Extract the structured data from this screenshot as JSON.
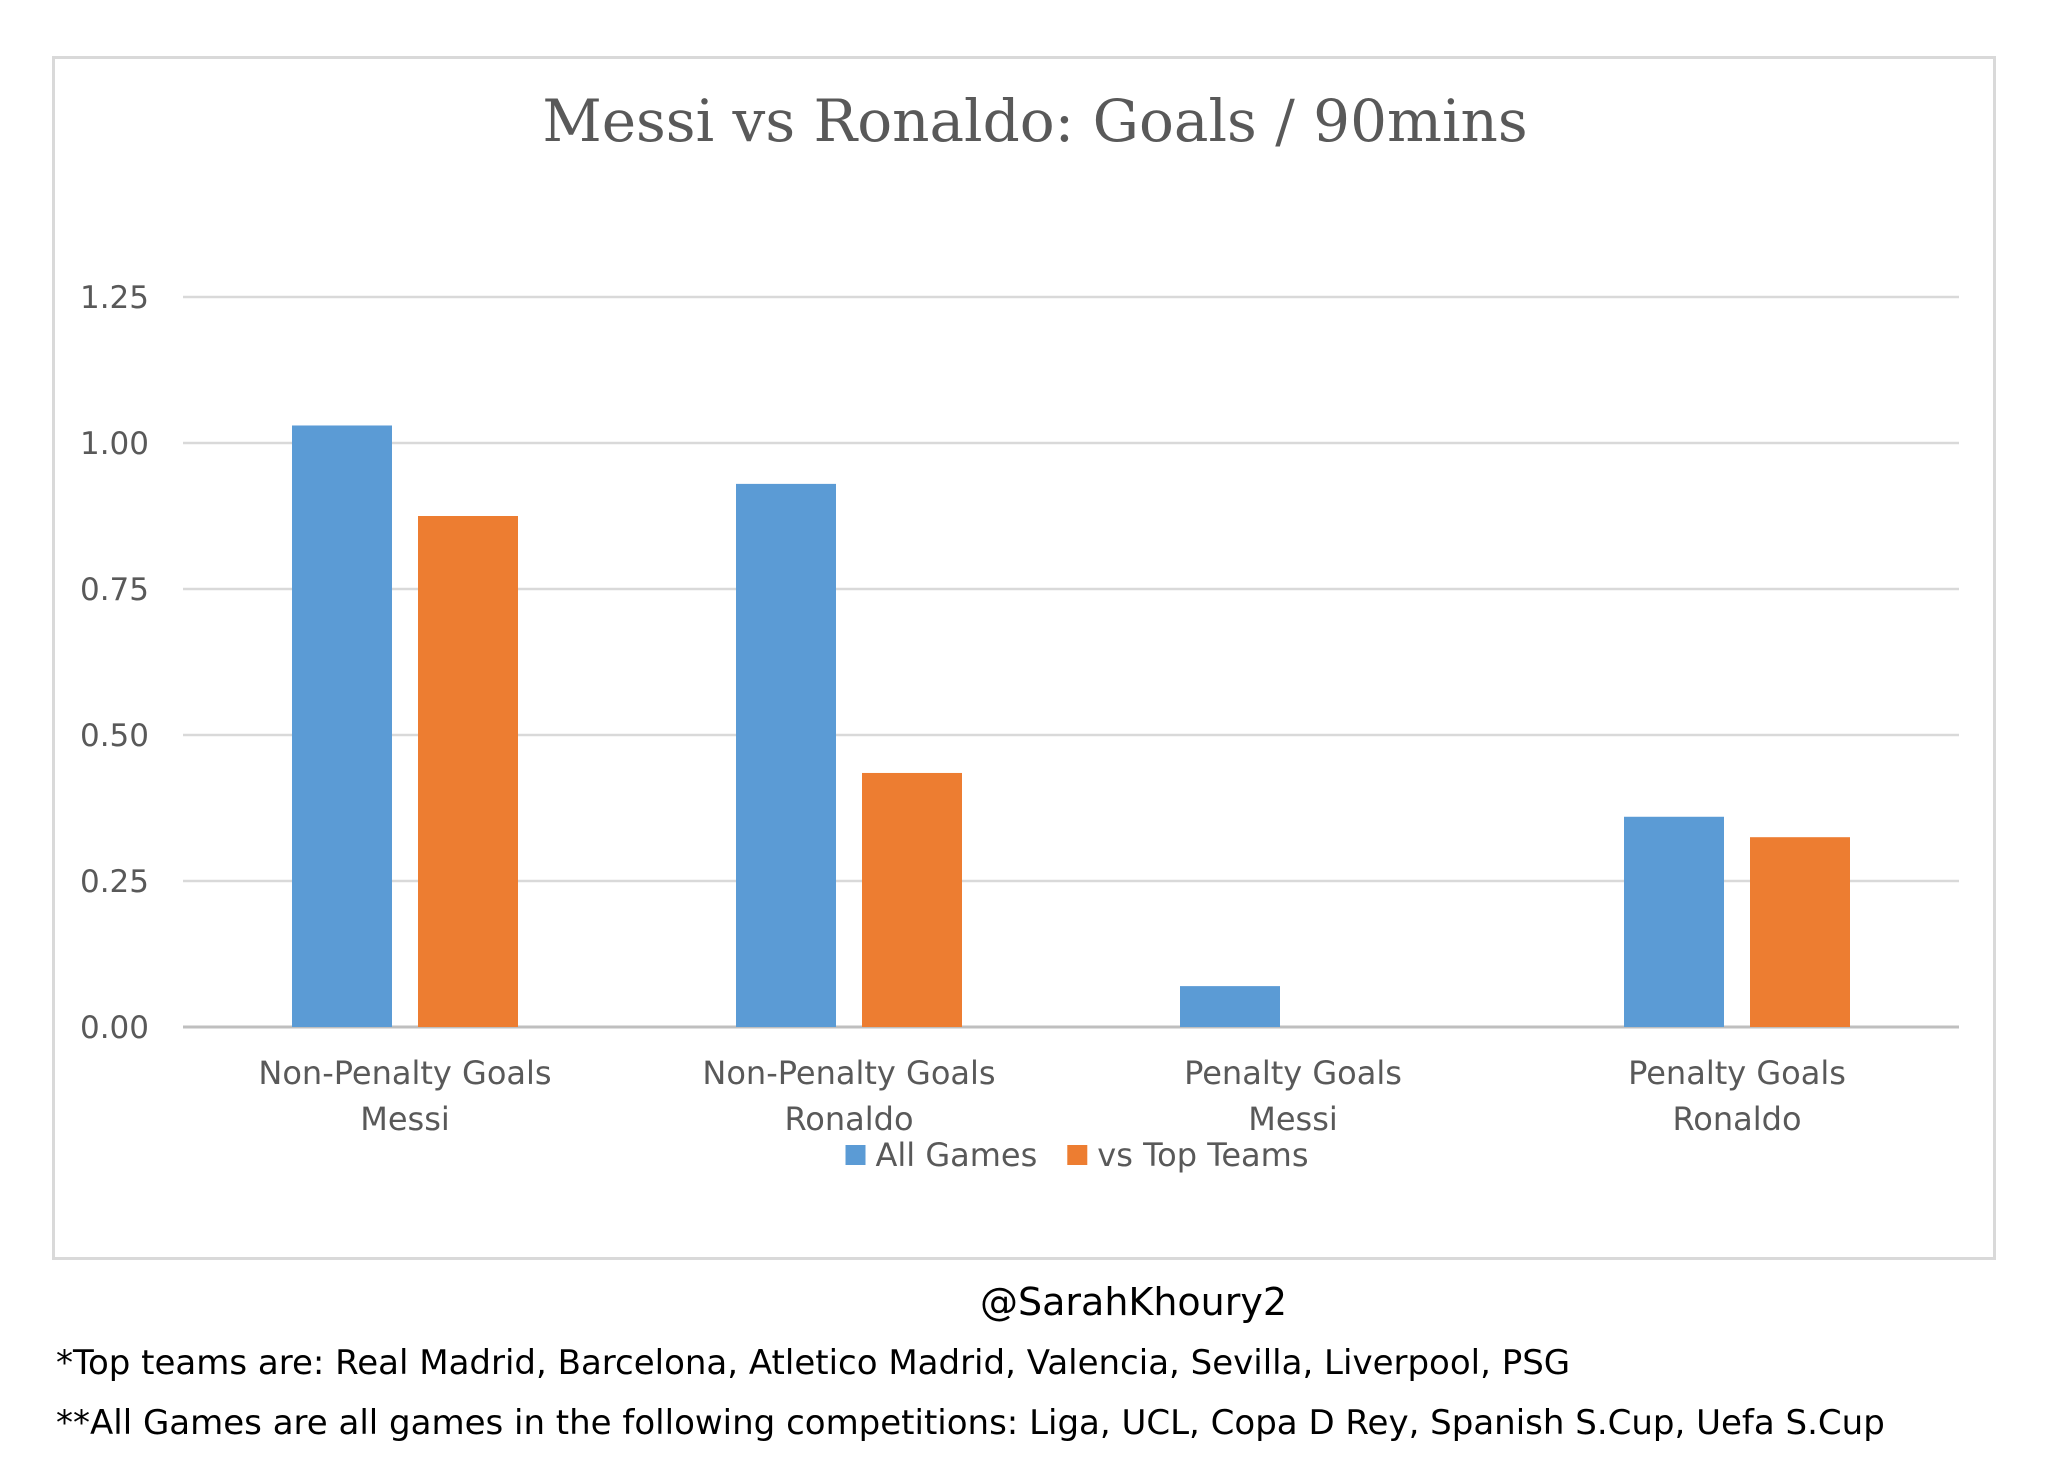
{
  "chart_data": {
    "type": "bar",
    "title": "Messi vs Ronaldo: Goals / 90mins",
    "categories": [
      [
        "Non-Penalty Goals",
        "Messi"
      ],
      [
        "Non-Penalty Goals",
        "Ronaldo"
      ],
      [
        "Penalty Goals",
        "Messi"
      ],
      [
        "Penalty Goals",
        "Ronaldo"
      ]
    ],
    "series": [
      {
        "name": "All Games",
        "color": "#5b9bd5",
        "values": [
          1.03,
          0.93,
          0.07,
          0.36
        ]
      },
      {
        "name": "vs Top Teams",
        "color": "#ed7d31",
        "values": [
          0.875,
          0.435,
          0,
          0.325
        ]
      }
    ],
    "ylim": [
      0,
      1.25
    ],
    "yticks": [
      "0.00",
      "0.25",
      "0.50",
      "0.75",
      "1.00",
      "1.25"
    ],
    "xlabel": "",
    "ylabel": "",
    "grid": true,
    "legend": "bottom-center"
  },
  "credit": "@SarahKhoury2",
  "notes": [
    "*Top teams are: Real Madrid, Barcelona, Atletico Madrid, Valencia, Sevilla, Liverpool, PSG",
    "**All Games are all games in the following competitions: Liga, UCL, Copa D Rey, Spanish S.Cup, Uefa S.Cup"
  ]
}
